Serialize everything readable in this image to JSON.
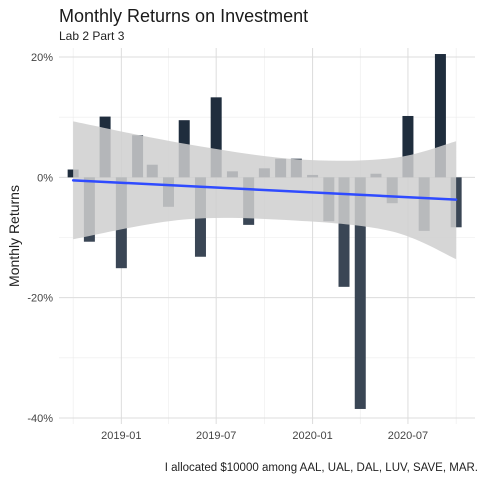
{
  "chart_data": {
    "type": "bar",
    "title": "Monthly Returns on Investment",
    "subtitle": "Lab 2 Part 3",
    "ylabel": "Monthly Returns",
    "xlabel": "",
    "caption": "I allocated $10000 among AAL, UAL, DAL, LUV, SAVE, MAR.",
    "x_ticks": [
      "2019-01",
      "2019-07",
      "2020-01",
      "2020-07"
    ],
    "y_ticks": [
      "-40%",
      "-20%",
      "0%",
      "20%"
    ],
    "ylim": [
      -0.41,
      0.215
    ],
    "xlim": [
      "2018-09-04",
      "2020-11-06"
    ],
    "grid": true,
    "bar_color_positive": "#1f2d3d",
    "bar_color_negative": "#3a4655",
    "trend_color": "#2f4bff",
    "band_color": "#cfcfcf",
    "series": [
      {
        "dates": [
          "2018-10",
          "2018-11",
          "2018-12",
          "2019-01",
          "2019-02",
          "2019-03",
          "2019-04",
          "2019-05",
          "2019-06",
          "2019-07",
          "2019-08",
          "2019-09",
          "2019-10",
          "2019-11",
          "2019-12",
          "2020-01",
          "2020-02",
          "2020-03",
          "2020-04",
          "2020-05",
          "2020-06",
          "2020-07",
          "2020-08",
          "2020-09",
          "2020-10"
        ],
        "values": [
          0.013,
          -0.107,
          0.101,
          -0.151,
          0.07,
          0.021,
          -0.049,
          0.095,
          -0.132,
          0.133,
          0.01,
          -0.079,
          0.015,
          0.031,
          0.031,
          0.004,
          -0.073,
          -0.182,
          -0.385,
          0.006,
          -0.043,
          0.102,
          -0.089,
          0.205,
          -0.083
        ]
      }
    ],
    "trend": {
      "start": {
        "date": "2018-10",
        "value": -0.005
      },
      "end": {
        "date": "2020-10",
        "value": -0.037
      }
    },
    "confidence_band": {
      "dates": [
        "2018-10",
        "2019-05",
        "2019-12",
        "2020-06",
        "2020-10"
      ],
      "upper": [
        0.093,
        0.056,
        0.03,
        0.032,
        0.06
      ],
      "lower": [
        -0.103,
        -0.07,
        -0.072,
        -0.09,
        -0.136
      ]
    }
  }
}
